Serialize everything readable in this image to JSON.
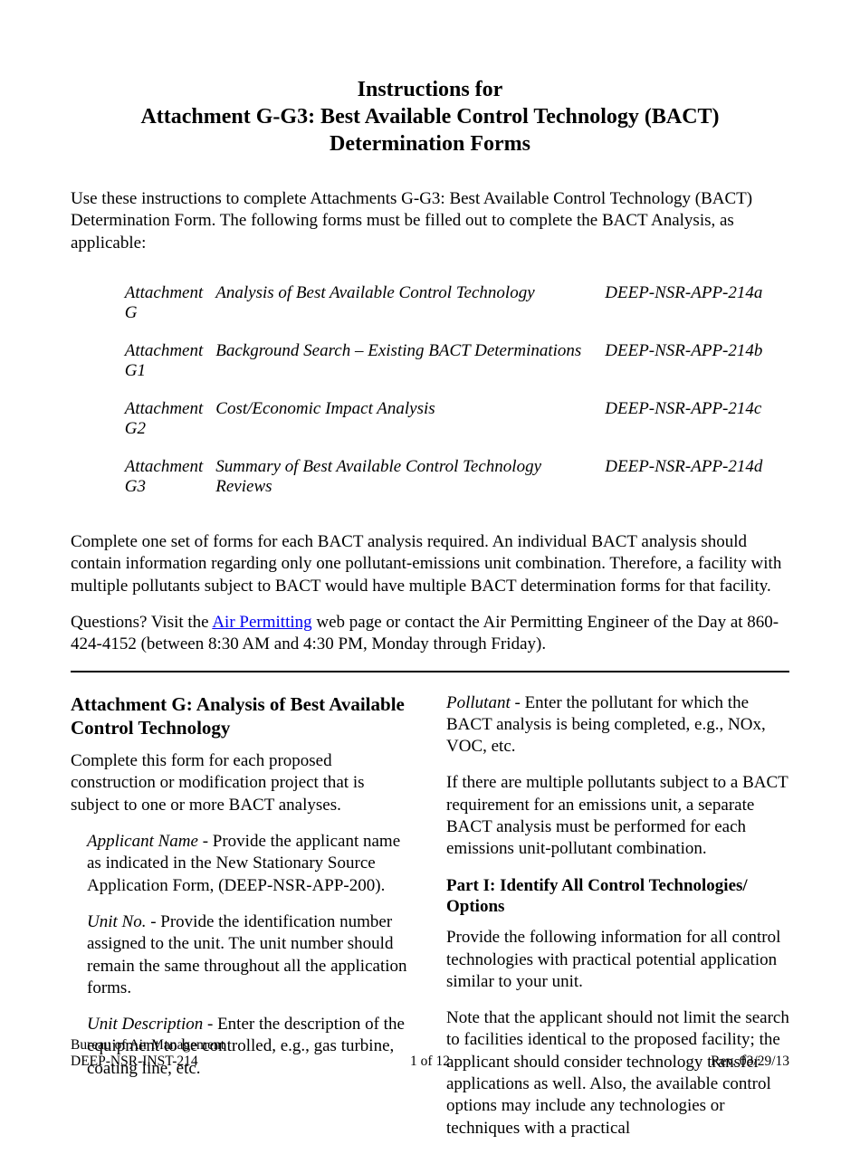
{
  "title": {
    "line1": "Instructions for",
    "line2": "Attachment G-G3: Best Available Control Technology (BACT)",
    "line3": "Determination Forms"
  },
  "intro": "Use these instructions to complete Attachments G-G3: Best Available Control Technology (BACT) Determination Form. The following forms must be filled out to complete the BACT Analysis, as applicable:",
  "attachments": [
    {
      "name": "Attachment G",
      "desc": "Analysis of Best Available Control Technology",
      "code": "DEEP-NSR-APP-214a"
    },
    {
      "name": "Attachment G1",
      "desc": "Background Search – Existing BACT Determinations",
      "code": "DEEP-NSR-APP-214b"
    },
    {
      "name": "Attachment G2",
      "desc": "Cost/Economic Impact Analysis",
      "code": "DEEP-NSR-APP-214c"
    },
    {
      "name": "Attachment G3",
      "desc": "Summary of Best Available Control Technology Reviews",
      "code": "DEEP-NSR-APP-214d"
    }
  ],
  "para2": "Complete one set of forms for each BACT analysis required.  An individual BACT analysis should contain information regarding only one pollutant-emissions unit combination. Therefore, a facility with multiple pollutants subject to BACT would have multiple BACT determination forms for that facility.",
  "questions": {
    "pre": "Questions? Visit the ",
    "link": "Air Permitting",
    "post": " web page or contact the Air Permitting Engineer of the Day at 860-424-4152 (between 8:30 AM and 4:30 PM, Monday through Friday)."
  },
  "left": {
    "heading": "Attachment G: Analysis of Best Available Control Technology",
    "p1": "Complete this form for each proposed construction or modification project that is subject to one or more BACT analyses.",
    "fields": {
      "applicant": {
        "label": "Applicant Name - ",
        "text": "Provide the applicant name as indicated in the New Stationary Source Application Form, (DEEP-NSR-APP-200)."
      },
      "unitno": {
        "label": "Unit No. - ",
        "text": "Provide the identification number assigned to the unit.  The unit number should remain the same throughout all the application forms."
      },
      "unitdesc": {
        "label": "Unit Description - ",
        "text": "Enter the description of the equipment to be controlled, e.g., gas turbine, coating line, etc."
      }
    }
  },
  "right": {
    "pollutant": {
      "label": "Pollutant - ",
      "text": "Enter the pollutant for which the BACT analysis is being completed, e.g., NOx, VOC, etc."
    },
    "p2": "If there are multiple pollutants subject to a BACT requirement for an emissions unit, a separate BACT analysis must be performed for each emissions unit-pollutant combination.",
    "part1_heading": "Part I: Identify All Control Technologies/ Options",
    "p3": "Provide the following information for all control technologies with practical potential application similar to your unit.",
    "p4": "Note that the applicant should not limit the search to facilities identical to the proposed facility; the applicant should consider technology transfer applications as well.  Also, the available control options may include any technologies or techniques with a practical"
  },
  "footer": {
    "left_line1": "Bureau of Air Management",
    "left_line2": "DEEP-NSR-INST-214",
    "center": "1 of 12",
    "right": "Rev. 03/29/13"
  }
}
